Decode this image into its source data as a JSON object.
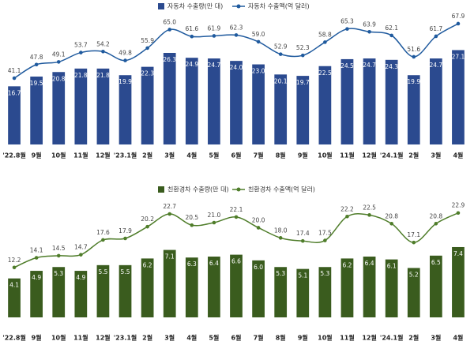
{
  "chart_data": [
    {
      "type": "bar-line",
      "categories": [
        "'22.8월",
        "9월",
        "10월",
        "11월",
        "12월",
        "'23.1월",
        "2월",
        "3월",
        "4월",
        "5월",
        "6월",
        "7월",
        "8월",
        "9월",
        "10월",
        "11월",
        "12월",
        "'24.1월",
        "2월",
        "3월",
        "4월"
      ],
      "ylim": [
        0,
        36.5
      ],
      "y2lim": [
        8.5,
        71
      ],
      "series": [
        {
          "name": "자동차 수출량(만 대)",
          "type": "bar",
          "color": "#2b4a8f",
          "values": [
            16.7,
            19.5,
            20.8,
            21.8,
            21.8,
            19.9,
            22.3,
            26.3,
            24.9,
            24.7,
            24.0,
            23.0,
            20.1,
            19.7,
            22.5,
            24.5,
            24.7,
            24.3,
            19.9,
            24.7,
            27.1
          ],
          "value_labels": [
            "16.7",
            "19.5",
            "20.8",
            "21.8",
            "21.8",
            "19.9",
            "22.3",
            "26.3",
            "24.9",
            "24.7",
            "24.0",
            "23.0",
            "20.1",
            "19.7",
            "22.5",
            "24.5",
            "24.7",
            "24.3",
            "19.9",
            "24.7",
            "27.1"
          ]
        },
        {
          "name": "자동차 수출액(억 달러)",
          "type": "line",
          "axis": "y2",
          "color": "#1f5a9e",
          "values": [
            41.1,
            47.8,
            49.1,
            53.7,
            54.2,
            49.8,
            55.9,
            65.0,
            61.6,
            61.9,
            62.3,
            59.0,
            52.9,
            52.3,
            58.8,
            65.3,
            63.9,
            62.1,
            51.6,
            61.7,
            67.9
          ],
          "value_labels": [
            "41.1",
            "47.8",
            "49.1",
            "53.7",
            "54.2",
            "49.8",
            "55.9",
            "65.0",
            "61.6",
            "61.9",
            "62.3",
            "59.0",
            "52.9",
            "52.3",
            "58.8",
            "65.3",
            "63.9",
            "62.1",
            "51.6",
            "61.7",
            "67.9"
          ]
        }
      ]
    },
    {
      "type": "bar-line",
      "categories": [
        "'22.8월",
        "9월",
        "10월",
        "11월",
        "12월",
        "'23.1월",
        "2월",
        "3월",
        "4월",
        "5월",
        "6월",
        "7월",
        "8월",
        "9월",
        "10월",
        "11월",
        "12월",
        "'24.1월",
        "2월",
        "3월",
        "4월"
      ],
      "ylim": [
        0,
        13.3
      ],
      "y2lim": [
        2.4,
        27.2
      ],
      "series": [
        {
          "name": "친환경차 수출량(만 대)",
          "type": "bar",
          "color": "#3a5c1e",
          "values": [
            4.1,
            4.9,
            5.3,
            4.9,
            5.5,
            5.5,
            6.2,
            7.1,
            6.3,
            6.4,
            6.6,
            6.0,
            5.3,
            5.1,
            5.3,
            6.2,
            6.4,
            6.1,
            5.2,
            6.5,
            7.4
          ],
          "value_labels": [
            "4.1",
            "4.9",
            "5.3",
            "4.9",
            "5.5",
            "5.5",
            "6.2",
            "7.1",
            "6.3",
            "6.4",
            "6.6",
            "6.0",
            "5.3",
            "5.1",
            "5.3",
            "6.2",
            "6.4",
            "6.1",
            "5.2",
            "6.5",
            "7.4"
          ]
        },
        {
          "name": "친환경차 수출액(억 달러)",
          "type": "line",
          "axis": "y2",
          "color": "#4f7d2a",
          "values": [
            12.2,
            14.1,
            14.5,
            14.7,
            17.6,
            17.9,
            20.2,
            22.7,
            20.5,
            21.0,
            22.1,
            20.0,
            18.0,
            17.4,
            17.5,
            22.2,
            22.5,
            20.8,
            17.1,
            20.8,
            22.9
          ],
          "value_labels": [
            "12.2",
            "14.1",
            "14.5",
            "14.7",
            "17.6",
            "17.9",
            "20.2",
            "22.7",
            "20.5",
            "21.0",
            "22.1",
            "20.0",
            "18.0",
            "17.4",
            "17.5",
            "22.2",
            "22.5",
            "20.8",
            "17.1",
            "20.8",
            "22.9"
          ]
        }
      ]
    }
  ]
}
